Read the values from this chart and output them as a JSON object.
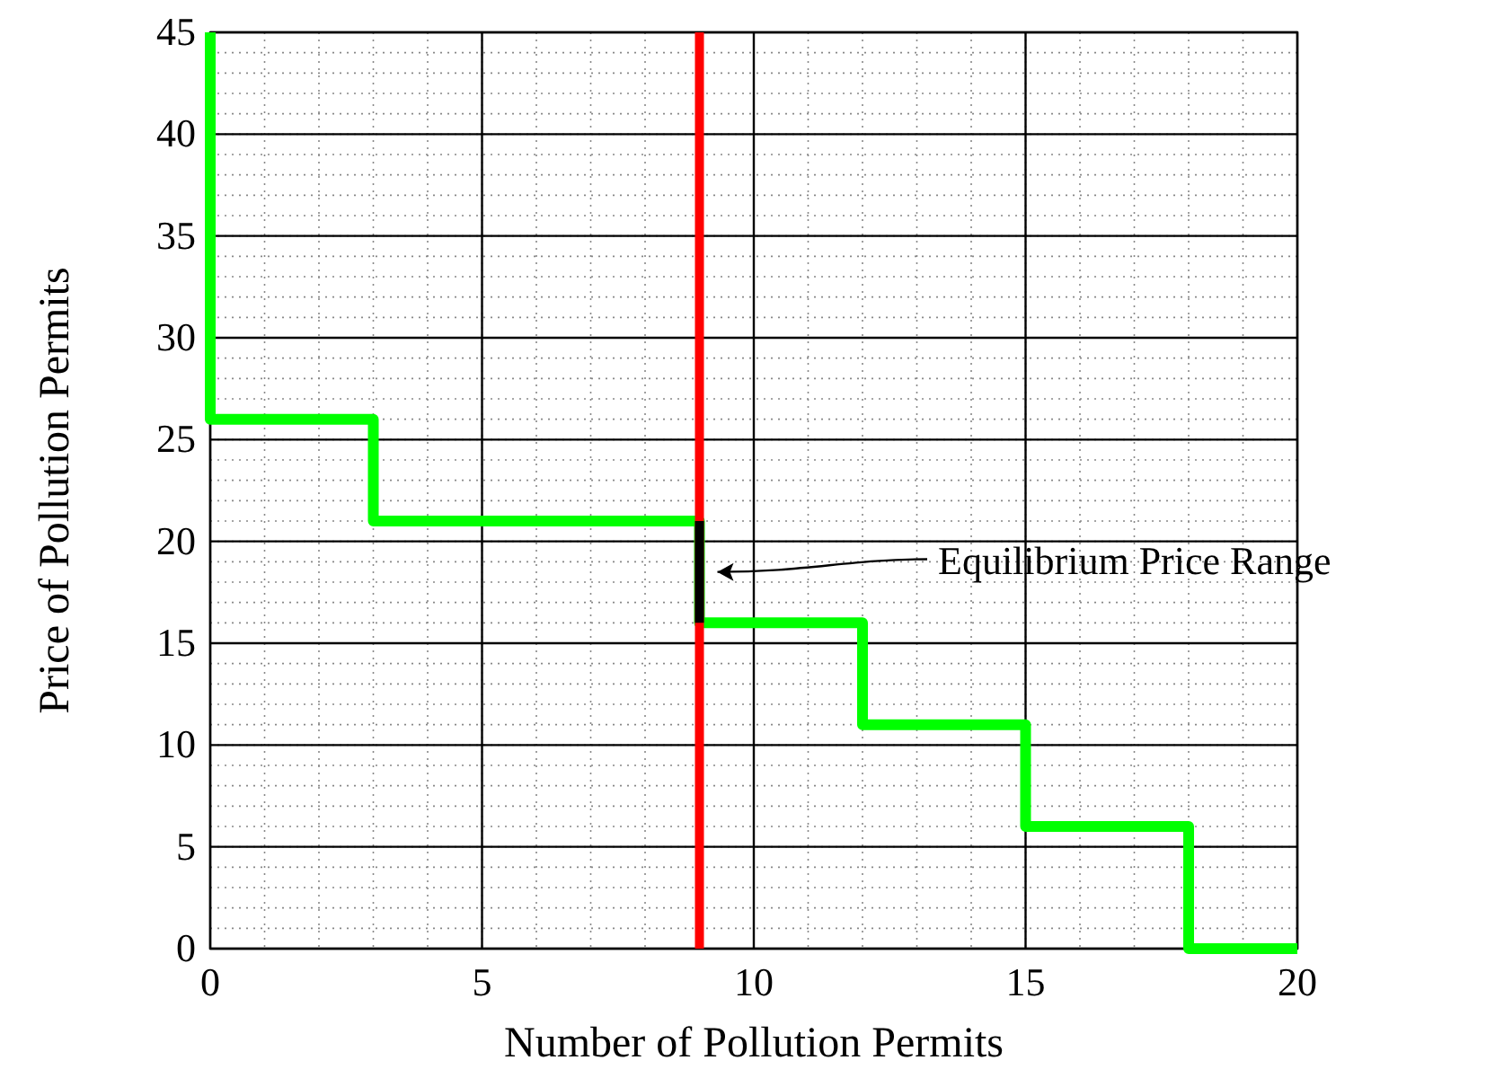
{
  "chart_data": {
    "type": "step",
    "xlabel": "Number of Pollution Permits",
    "ylabel": "Price of Pollution Permits",
    "xlim": [
      0,
      20
    ],
    "ylim": [
      0,
      45
    ],
    "xticks": [
      0,
      5,
      10,
      15,
      20
    ],
    "yticks": [
      0,
      5,
      10,
      15,
      20,
      25,
      30,
      35,
      40,
      45
    ],
    "grid": true,
    "series": [
      {
        "color": "#00ff00",
        "x": [
          0,
          0,
          3,
          9,
          12,
          15,
          18,
          20
        ],
        "values": [
          45,
          26,
          21,
          16,
          11,
          6,
          0,
          0
        ]
      },
      {
        "type": "line",
        "color": "#ff0000",
        "x": [
          9,
          9
        ],
        "values": [
          0,
          45
        ]
      },
      {
        "type": "line",
        "color": "#000000",
        "x": [
          9,
          9
        ],
        "values": [
          16,
          21
        ]
      }
    ],
    "annotations": [
      "Equilibrium Price Range"
    ]
  }
}
